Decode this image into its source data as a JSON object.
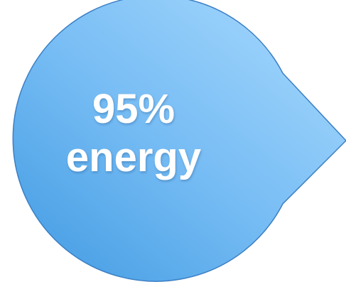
{
  "callout": {
    "value_text": "95%",
    "caption_text": "energy",
    "fill_top_color": "#9fd3fb",
    "fill_bottom_color": "#49a2e6",
    "stroke_color": "#3b7fc4",
    "text_color": "#ffffff"
  }
}
